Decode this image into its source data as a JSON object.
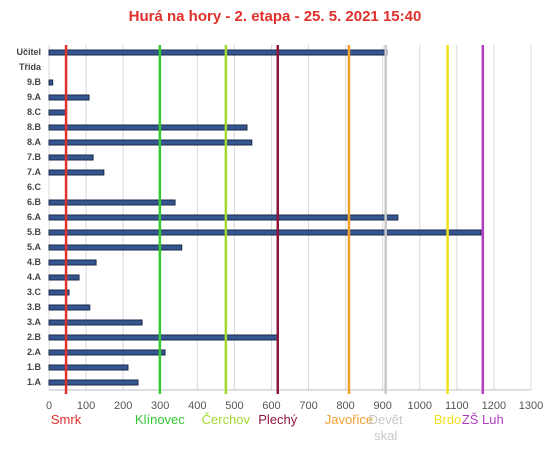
{
  "chart_data": {
    "type": "hbar",
    "title": "Hurá na hory - 2. etapa - 25. 5. 2021 15:40",
    "categories": [
      "Učitel",
      "Třída",
      "9.B",
      "9.A",
      "8.C",
      "8.B",
      "8.A",
      "7.B",
      "7.A",
      "6.C",
      "6.B",
      "6.A",
      "5.B",
      "5.A",
      "4.B",
      "4.A",
      "3.C",
      "3.B",
      "3.A",
      "2.B",
      "2.A",
      "1.B",
      "1.A"
    ],
    "values": [
      911,
      0,
      10,
      108,
      46,
      534,
      547,
      119,
      148,
      0,
      340,
      941,
      1165,
      358,
      127,
      81,
      54,
      110,
      251,
      617,
      313,
      213,
      240
    ],
    "color": "#34558f",
    "xlim": [
      0,
      1300
    ],
    "xticks": [
      0,
      100,
      200,
      300,
      400,
      500,
      600,
      700,
      800,
      900,
      1000,
      1100,
      1200,
      1300
    ],
    "grid": true,
    "reference_lines": [
      {
        "name": "Smrk",
        "value": 46,
        "color": "#e0302c"
      },
      {
        "name": "Klínovec",
        "value": 299,
        "color": "#35c935"
      },
      {
        "name": "Čerchov",
        "value": 477,
        "color": "#a2d92e"
      },
      {
        "name": "Plechý",
        "value": 617,
        "color": "#8e1538"
      },
      {
        "name": "Javořice",
        "value": 809,
        "color": "#f2a02e"
      },
      {
        "name": "Devět skal",
        "value": 908,
        "color": "#c8c8c8"
      },
      {
        "name": "Brdo",
        "value": 1075,
        "color": "#f1e01c"
      },
      {
        "name": "ZŠ Luh",
        "value": 1170,
        "color": "#b23fc2"
      }
    ]
  }
}
